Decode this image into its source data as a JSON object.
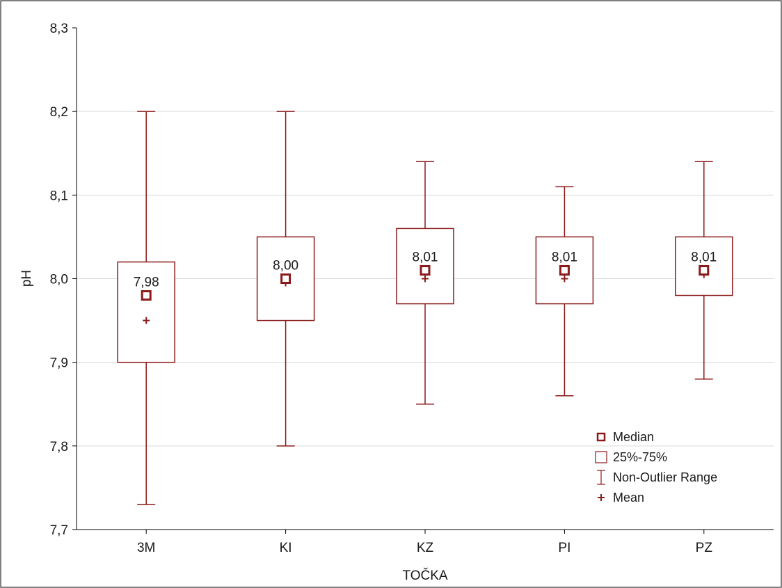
{
  "chart_data": {
    "type": "box",
    "xlabel": "TOČKA",
    "ylabel": "pH",
    "ylim": [
      7.7,
      8.3
    ],
    "yticks": [
      "7,7",
      "7,8",
      "7,9",
      "8,0",
      "8,1",
      "8,2",
      "8,3"
    ],
    "grid": true,
    "legend_position": "bottom-right",
    "categories": [
      "3M",
      "KI",
      "KZ",
      "PI",
      "PZ"
    ],
    "boxes": [
      {
        "category": "3M",
        "whisker_low": 7.73,
        "q1": 7.9,
        "median": 7.98,
        "q3": 8.02,
        "whisker_high": 8.2,
        "mean": 7.95,
        "median_label": "7,98"
      },
      {
        "category": "KI",
        "whisker_low": 7.8,
        "q1": 7.95,
        "median": 8.0,
        "q3": 8.05,
        "whisker_high": 8.2,
        "mean": 7.995,
        "median_label": "8,00"
      },
      {
        "category": "KZ",
        "whisker_low": 7.85,
        "q1": 7.97,
        "median": 8.01,
        "q3": 8.06,
        "whisker_high": 8.14,
        "mean": 8.0,
        "median_label": "8,01"
      },
      {
        "category": "PI",
        "whisker_low": 7.86,
        "q1": 7.97,
        "median": 8.01,
        "q3": 8.05,
        "whisker_high": 8.11,
        "mean": 8.0,
        "median_label": "8,01"
      },
      {
        "category": "PZ",
        "whisker_low": 7.88,
        "q1": 7.98,
        "median": 8.01,
        "q3": 8.05,
        "whisker_high": 8.14,
        "mean": 8.005,
        "median_label": "8,01"
      }
    ],
    "legend": [
      {
        "symbol": "median-square",
        "label": "Median"
      },
      {
        "symbol": "box",
        "label": "25%-75%"
      },
      {
        "symbol": "whisker",
        "label": "Non-Outlier Range"
      },
      {
        "symbol": "mean-plus",
        "label": "Mean"
      }
    ],
    "colors": {
      "series": "#8b1a1a",
      "grid": "#d9d9d9",
      "axis": "#000000"
    }
  }
}
